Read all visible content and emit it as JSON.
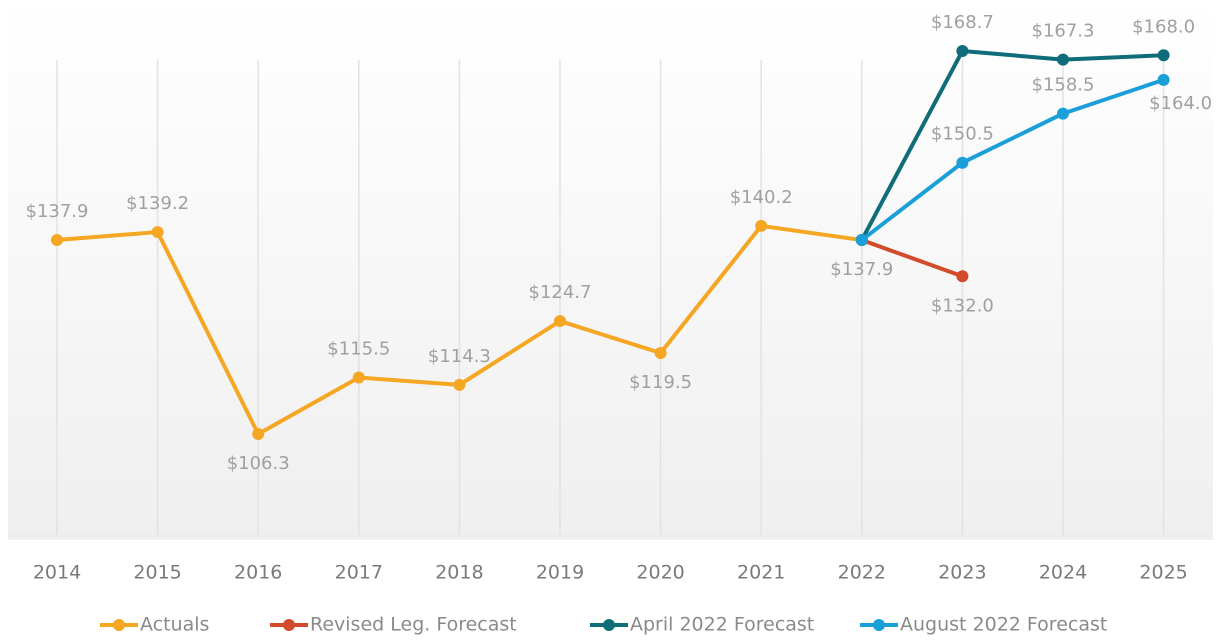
{
  "chart_data": {
    "type": "line",
    "categories": [
      "2014",
      "2015",
      "2016",
      "2017",
      "2018",
      "2019",
      "2020",
      "2021",
      "2022",
      "2023",
      "2024",
      "2025"
    ],
    "series": [
      {
        "name": "Actuals",
        "color": "#f5a623",
        "values": [
          137.9,
          139.2,
          106.3,
          115.5,
          114.3,
          124.7,
          119.5,
          140.2,
          137.9,
          null,
          null,
          null
        ],
        "value_labels": [
          "$137.9",
          "$139.2",
          "$106.3",
          "$115.5",
          "$114.3",
          "$124.7",
          "$119.5",
          "$140.2",
          "$137.9",
          null,
          null,
          null
        ]
      },
      {
        "name": "Revised Leg. Forecast",
        "color": "#d24b2a",
        "values": [
          null,
          null,
          null,
          null,
          null,
          null,
          null,
          null,
          137.9,
          132.0,
          null,
          null
        ],
        "value_labels": [
          null,
          null,
          null,
          null,
          null,
          null,
          null,
          null,
          null,
          "$132.0",
          null,
          null
        ]
      },
      {
        "name": "April 2022 Forecast",
        "color": "#0e6d78",
        "values": [
          null,
          null,
          null,
          null,
          null,
          null,
          null,
          null,
          137.9,
          168.7,
          167.3,
          168.0
        ],
        "value_labels": [
          null,
          null,
          null,
          null,
          null,
          null,
          null,
          null,
          null,
          "$168.7",
          "$167.3",
          "$168.0"
        ]
      },
      {
        "name": "August 2022 Forecast",
        "color": "#1a9fd8",
        "values": [
          null,
          null,
          null,
          null,
          null,
          null,
          null,
          null,
          137.9,
          150.5,
          158.5,
          164.0
        ],
        "value_labels": [
          null,
          null,
          null,
          null,
          null,
          null,
          null,
          null,
          null,
          "$150.5",
          "$158.5",
          "$164.0"
        ]
      }
    ]
  }
}
